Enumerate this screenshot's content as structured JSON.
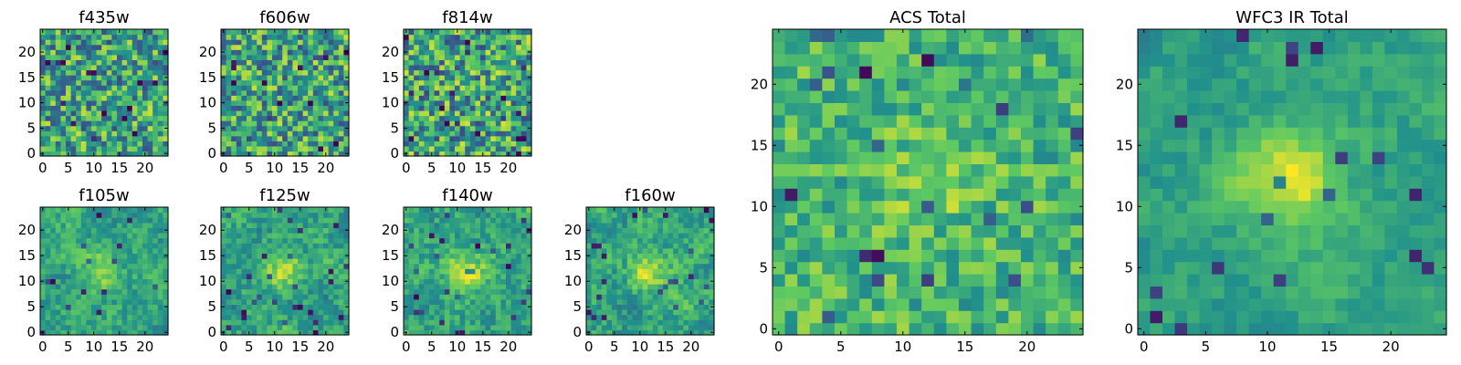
{
  "colormap": [
    "#440154",
    "#3b528b",
    "#21918c",
    "#5ec962",
    "#fde725"
  ],
  "chart_data": [
    {
      "type": "heatmap",
      "title": "f435w",
      "grid_size": 25,
      "xticks": [
        "0",
        "5",
        "10",
        "15",
        "20"
      ],
      "yticks": [
        "0",
        "5",
        "10",
        "15",
        "20"
      ],
      "xlim": [
        0,
        24
      ],
      "ylim": [
        0,
        24
      ],
      "seed": 11,
      "noise": 0.34,
      "blob": 0.0,
      "low_mix": 0.0
    },
    {
      "type": "heatmap",
      "title": "f606w",
      "grid_size": 25,
      "xticks": [
        "0",
        "5",
        "10",
        "15",
        "20"
      ],
      "yticks": [
        "0",
        "5",
        "10",
        "15",
        "20"
      ],
      "xlim": [
        0,
        24
      ],
      "ylim": [
        0,
        24
      ],
      "seed": 23,
      "noise": 0.34,
      "blob": 0.0,
      "low_mix": 0.0
    },
    {
      "type": "heatmap",
      "title": "f814w",
      "grid_size": 25,
      "xticks": [
        "0",
        "5",
        "10",
        "15",
        "20"
      ],
      "yticks": [
        "0",
        "5",
        "10",
        "15",
        "20"
      ],
      "xlim": [
        0,
        24
      ],
      "ylim": [
        0,
        24
      ],
      "seed": 37,
      "noise": 0.36,
      "blob": 0.0,
      "low_mix": 0.0
    },
    {
      "type": "heatmap",
      "title": "f105w",
      "grid_size": 25,
      "xticks": [
        "0",
        "5",
        "10",
        "15",
        "20"
      ],
      "yticks": [
        "0",
        "5",
        "10",
        "15",
        "20"
      ],
      "xlim": [
        0,
        24
      ],
      "ylim": [
        0,
        24
      ],
      "seed": 41,
      "noise": 0.22,
      "blob": 0.25,
      "low_mix": 0.45
    },
    {
      "type": "heatmap",
      "title": "f125w",
      "grid_size": 25,
      "xticks": [
        "0",
        "5",
        "10",
        "15",
        "20"
      ],
      "yticks": [
        "0",
        "5",
        "10",
        "15",
        "20"
      ],
      "xlim": [
        0,
        24
      ],
      "ylim": [
        0,
        24
      ],
      "seed": 53,
      "noise": 0.24,
      "blob": 0.25,
      "low_mix": 0.45
    },
    {
      "type": "heatmap",
      "title": "f140w",
      "grid_size": 25,
      "xticks": [
        "0",
        "5",
        "10",
        "15",
        "20"
      ],
      "yticks": [
        "0",
        "5",
        "10",
        "15",
        "20"
      ],
      "xlim": [
        0,
        24
      ],
      "ylim": [
        0,
        24
      ],
      "seed": 67,
      "noise": 0.24,
      "blob": 0.3,
      "low_mix": 0.45
    },
    {
      "type": "heatmap",
      "title": "f160w",
      "grid_size": 25,
      "xticks": [
        "0",
        "5",
        "10",
        "15",
        "20"
      ],
      "yticks": [
        "0",
        "5",
        "10",
        "15",
        "20"
      ],
      "xlim": [
        0,
        24
      ],
      "ylim": [
        0,
        24
      ],
      "seed": 79,
      "noise": 0.24,
      "blob": 0.35,
      "low_mix": 0.45
    },
    {
      "type": "heatmap",
      "title": "ACS Total",
      "grid_size": 25,
      "xticks": [
        "0",
        "5",
        "10",
        "15",
        "20"
      ],
      "yticks": [
        "0",
        "5",
        "10",
        "15",
        "20"
      ],
      "xlim": [
        0,
        24
      ],
      "ylim": [
        0,
        24
      ],
      "seed": 91,
      "noise": 0.2,
      "blob": 0.12,
      "low_mix": 0.0,
      "center": 0.66
    },
    {
      "type": "heatmap",
      "title": "WFC3 IR Total",
      "grid_size": 25,
      "xticks": [
        "0",
        "5",
        "10",
        "15",
        "20"
      ],
      "yticks": [
        "0",
        "5",
        "10",
        "15",
        "20"
      ],
      "xlim": [
        0,
        24
      ],
      "ylim": [
        0,
        24
      ],
      "seed": 103,
      "noise": 0.16,
      "blob": 0.45,
      "low_mix": 0.55
    }
  ]
}
